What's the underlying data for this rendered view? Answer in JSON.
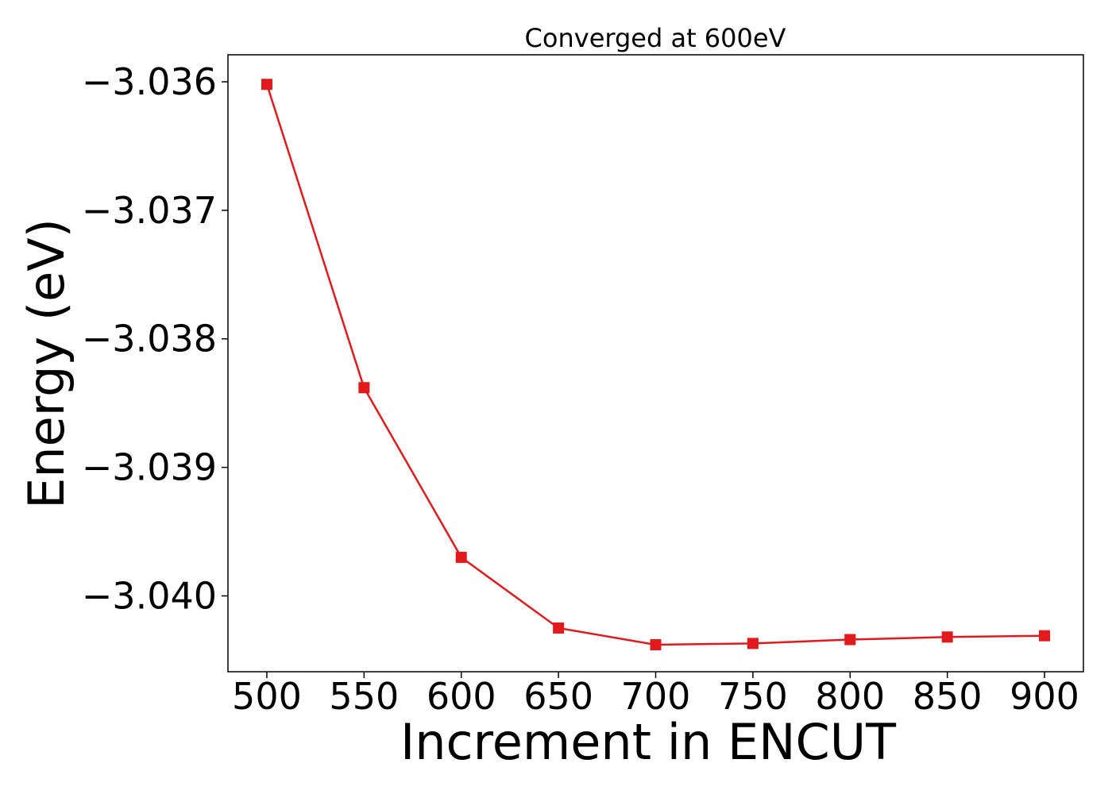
{
  "chart_data": {
    "type": "line",
    "title": "Converged at 600eV",
    "xlabel": "Increment in ENCUT",
    "ylabel": "Energy (eV)",
    "x": [
      500,
      550,
      600,
      650,
      700,
      750,
      800,
      850,
      900
    ],
    "x_tick_labels": [
      "500",
      "550",
      "600",
      "650",
      "700",
      "750",
      "800",
      "850",
      "900"
    ],
    "y_ticks": [
      -3.036,
      -3.037,
      -3.038,
      -3.039,
      -3.04
    ],
    "y_tick_labels": [
      "−3.036",
      "−3.037",
      "−3.038",
      "−3.039",
      "−3.040"
    ],
    "xlim": [
      480,
      920
    ],
    "ylim": [
      -3.04059,
      -3.03579
    ],
    "grid": false,
    "series": [
      {
        "marker": "square",
        "color": "#e31a1c",
        "values": [
          -3.03602,
          -3.03838,
          -3.0397,
          -3.04025,
          -3.04038,
          -3.04037,
          -3.04034,
          -3.04032,
          -3.04031
        ]
      }
    ]
  }
}
